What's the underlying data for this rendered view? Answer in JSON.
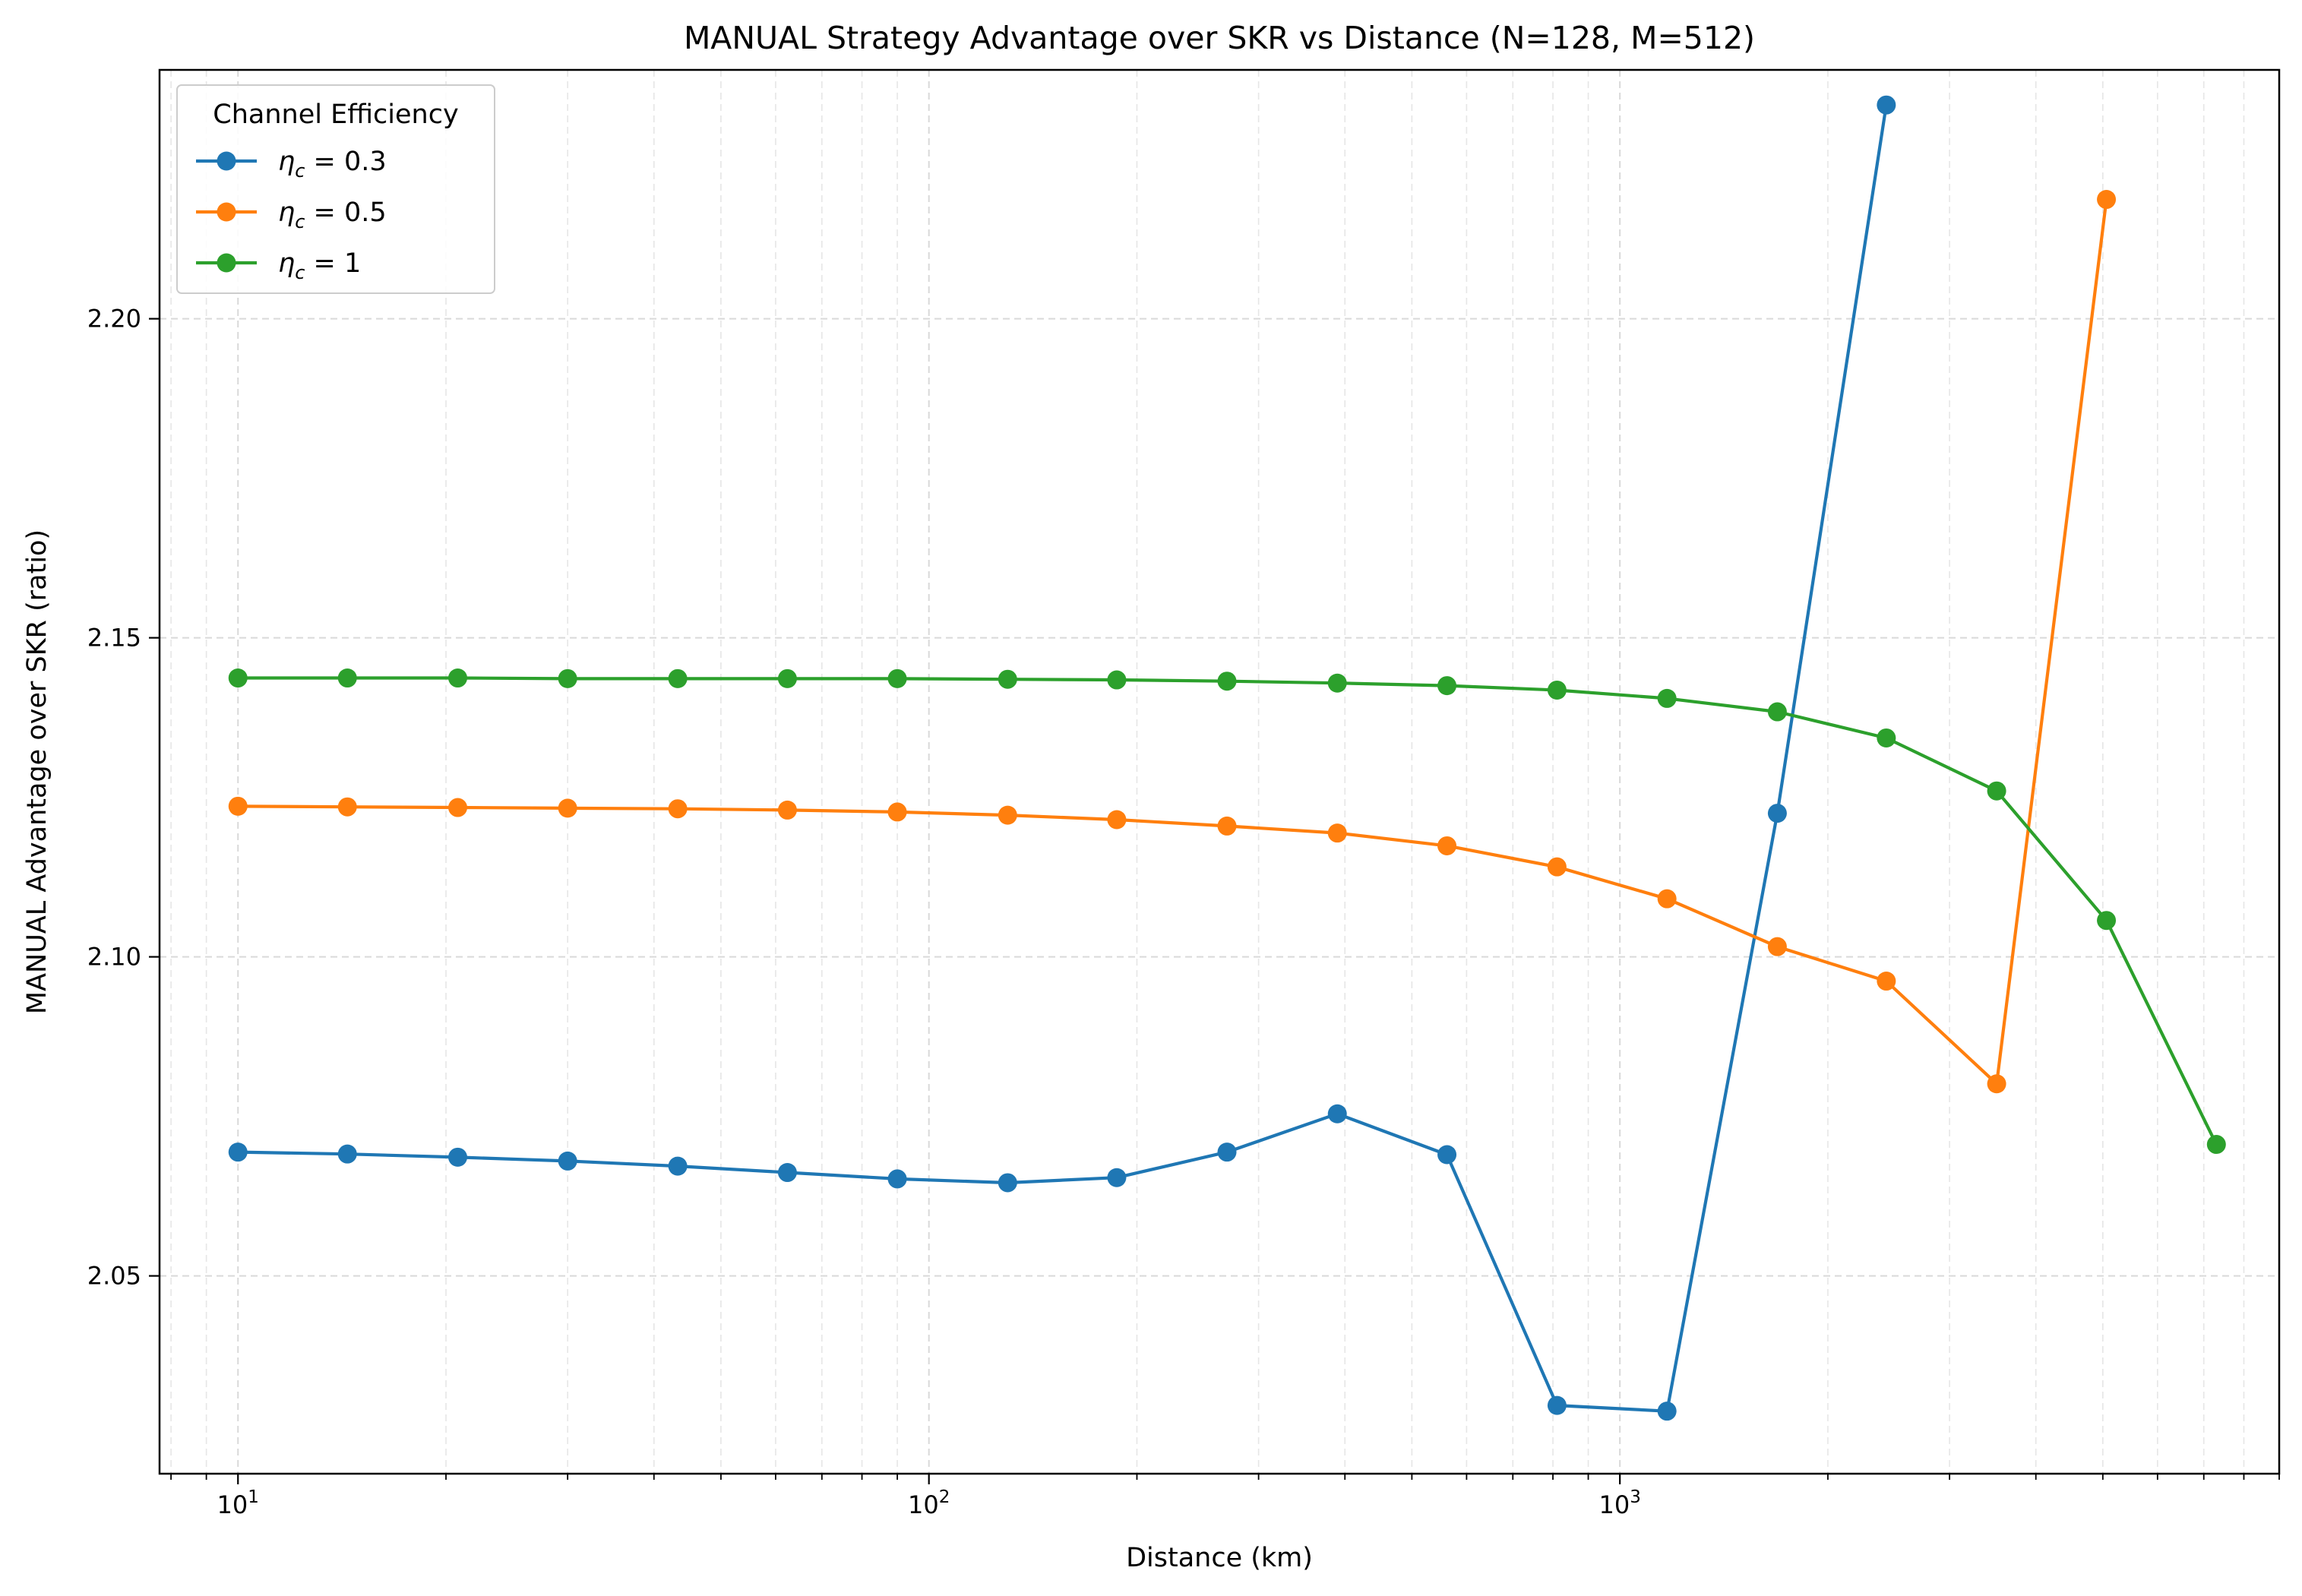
{
  "chart_data": {
    "type": "line",
    "title": "MANUAL Strategy Advantage over SKR vs Distance (N=128, M=512)",
    "xlabel": "Distance (km)",
    "ylabel": "MANUAL Advantage over SKR (ratio)",
    "xscale": "log",
    "xlim": [
      7.7,
      9000
    ],
    "ylim": [
      2.019,
      2.239
    ],
    "grid": true,
    "legend": {
      "title": "Channel Efficiency",
      "placement": "upper-left"
    },
    "x_ticks": [
      {
        "value": 10,
        "base": "10",
        "exp": "1"
      },
      {
        "value": 100,
        "base": "10",
        "exp": "2"
      },
      {
        "value": 1000,
        "base": "10",
        "exp": "3"
      }
    ],
    "y_ticks": [
      {
        "value": 2.05,
        "label": "2.05"
      },
      {
        "value": 2.1,
        "label": "2.10"
      },
      {
        "value": 2.15,
        "label": "2.15"
      },
      {
        "value": 2.2,
        "label": "2.20"
      }
    ],
    "series": [
      {
        "name": "η_c = 0.3",
        "label_value": "0.3",
        "color": "#1f77b4",
        "x": [
          10,
          14.4,
          20.8,
          30,
          43.3,
          62.4,
          90,
          130,
          187,
          270,
          390,
          562,
          811,
          1170,
          1690,
          2430
        ],
        "y": [
          2.0694,
          2.0691,
          2.0686,
          2.068,
          2.0672,
          2.0662,
          2.0652,
          2.0646,
          2.0654,
          2.0694,
          2.0754,
          2.069,
          2.0297,
          2.0288,
          2.1225,
          2.2335
        ]
      },
      {
        "name": "η_c = 0.5",
        "label_value": "0.5",
        "color": "#ff7f0e",
        "x": [
          10,
          14.4,
          20.8,
          30,
          43.3,
          62.4,
          90,
          130,
          187,
          270,
          390,
          562,
          811,
          1170,
          1690,
          2430,
          3510,
          5060
        ],
        "y": [
          2.1236,
          2.1235,
          2.1234,
          2.1233,
          2.1232,
          2.123,
          2.1227,
          2.1222,
          2.1215,
          2.1205,
          2.1194,
          2.1174,
          2.1141,
          2.1091,
          2.1016,
          2.0962,
          2.0801,
          2.2187
        ]
      },
      {
        "name": "η_c = 1",
        "label_value": "1",
        "color": "#2ca02c",
        "x": [
          10,
          14.4,
          20.8,
          30,
          43.3,
          62.4,
          90,
          130,
          187,
          270,
          390,
          562,
          811,
          1170,
          1690,
          2430,
          3510,
          5060,
          7300
        ],
        "y": [
          2.1437,
          2.1437,
          2.1437,
          2.1436,
          2.1436,
          2.1436,
          2.1436,
          2.1435,
          2.1434,
          2.1432,
          2.1429,
          2.1425,
          2.1418,
          2.1405,
          2.1384,
          2.1343,
          2.126,
          2.1057,
          2.0706
        ]
      }
    ]
  }
}
